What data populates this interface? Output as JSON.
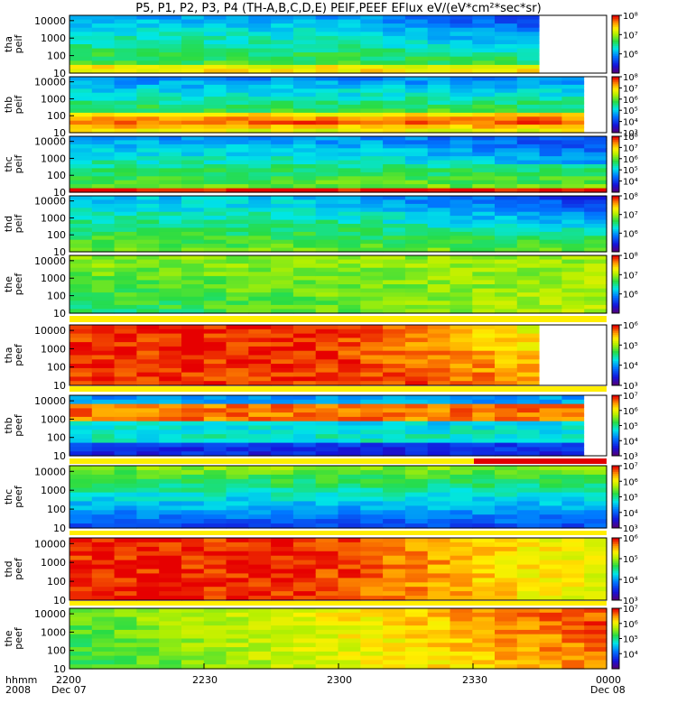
{
  "title": "P5, P1, P2, P3, P4 (TH-A,B,C,D,E) PEIF,PEEF EFlux eV/(eV*cm²*sec*sr)",
  "x_axis": {
    "hhmm_label": "hhmm",
    "year_label": "2008",
    "ticks": [
      {
        "label": "2200",
        "sub": "Dec 07"
      },
      {
        "label": "2230",
        "sub": ""
      },
      {
        "label": "2300",
        "sub": ""
      },
      {
        "label": "2330",
        "sub": ""
      },
      {
        "label": "0000",
        "sub": "Dec 08"
      }
    ]
  },
  "chart_data": {
    "type": "heatmap",
    "title": "P5, P1, P2, P3, P4 (TH-A,B,C,D,E) PEIF,PEEF EFlux eV/(eV*cm²*sec*sr)",
    "x_range": [
      "2008-12-07 22:00",
      "2008-12-08 00:00"
    ],
    "x_ticks": [
      "2200",
      "2230",
      "2300",
      "2330",
      "0000"
    ],
    "y_scale": "log",
    "z_scale": "log",
    "colormap": "rainbow",
    "panels": [
      {
        "ylabel": "tha peif",
        "yticks": [
          "10",
          "100",
          "1000",
          "10000"
        ],
        "zticks": [
          "10⁶",
          "10⁷",
          "10⁸"
        ],
        "zlim": [
          100000.0,
          100000000.0
        ]
      },
      {
        "ylabel": "thb peif",
        "yticks": [
          "10",
          "100",
          "1000",
          "10000"
        ],
        "zticks": [
          "10³",
          "10⁴",
          "10⁵",
          "10⁶",
          "10⁷",
          "10⁸"
        ],
        "zlim": [
          1000.0,
          100000000.0
        ]
      },
      {
        "ylabel": "thc peif",
        "yticks": [
          "10",
          "100",
          "1000",
          "10000"
        ],
        "zticks": [
          "10⁴",
          "10⁵",
          "10⁶",
          "10⁷",
          "10⁸"
        ],
        "zlim": [
          1000.0,
          100000000.0
        ]
      },
      {
        "ylabel": "thd peif",
        "yticks": [
          "10",
          "100",
          "1000",
          "10000"
        ],
        "zticks": [
          "10⁶",
          "10⁷",
          "10⁸"
        ],
        "zlim": [
          100000.0,
          100000000.0
        ]
      },
      {
        "ylabel": "the peef",
        "yticks": [
          "10",
          "100",
          "1000",
          "10000"
        ],
        "zticks": [
          "10⁶",
          "10⁷",
          "10⁸"
        ],
        "zlim": [
          100000.0,
          100000000.0
        ]
      },
      {
        "ylabel": "tha peef",
        "yticks": [
          "10",
          "100",
          "1000",
          "10000"
        ],
        "zticks": [
          "10³",
          "10⁴",
          "10⁵",
          "10⁶"
        ],
        "zlim": [
          1000.0,
          1000000.0
        ]
      },
      {
        "ylabel": "thb peef",
        "yticks": [
          "10",
          "100",
          "1000",
          "10000"
        ],
        "zticks": [
          "10³",
          "10⁴",
          "10⁵",
          "10⁶",
          "10⁷"
        ],
        "zlim": [
          1000.0,
          10000000.0
        ]
      },
      {
        "ylabel": "thc peef",
        "yticks": [
          "10",
          "100",
          "1000",
          "10000"
        ],
        "zticks": [
          "10³",
          "10⁴",
          "10⁵",
          "10⁶",
          "10⁷"
        ],
        "zlim": [
          1000.0,
          10000000.0
        ]
      },
      {
        "ylabel": "thd peef",
        "yticks": [
          "10",
          "100",
          "1000",
          "10000"
        ],
        "zticks": [
          "10³",
          "10⁴",
          "10⁵",
          "10⁶"
        ],
        "zlim": [
          1000.0,
          1000000.0
        ]
      },
      {
        "ylabel": "the peef",
        "yticks": [
          "10",
          "100",
          "1000",
          "10000"
        ],
        "zticks": [
          "10⁴",
          "10⁵",
          "10⁶",
          "10⁷"
        ],
        "zlim": [
          1000.0,
          10000000.0
        ]
      }
    ]
  }
}
